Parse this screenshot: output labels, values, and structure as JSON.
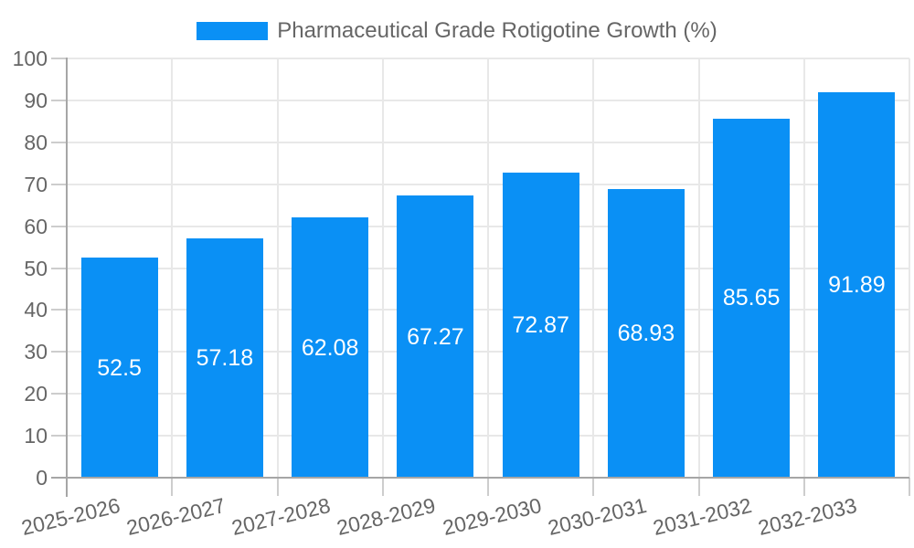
{
  "chart_data": {
    "type": "bar",
    "title": "Pharmaceutical Grade Rotigotine Growth (%)",
    "categories": [
      "2025-2026",
      "2026-2027",
      "2027-2028",
      "2028-2029",
      "2029-2030",
      "2030-2031",
      "2031-2032",
      "2032-2033"
    ],
    "values": [
      52.5,
      57.18,
      62.08,
      67.27,
      72.87,
      68.93,
      85.65,
      91.89
    ],
    "value_labels": [
      "52.5",
      "57.18",
      "62.08",
      "67.27",
      "72.87",
      "68.93",
      "85.65",
      "91.89"
    ],
    "xlabel": "",
    "ylabel": "",
    "ylim": [
      0,
      100
    ],
    "yticks": [
      0,
      10,
      20,
      30,
      40,
      50,
      60,
      70,
      80,
      90,
      100
    ],
    "grid": true,
    "legend_position": "top-center",
    "colors": {
      "bar": "#0a90f5",
      "grid": "#e8e8e8",
      "tick": "#cdcdcd",
      "axis": "#a6a6a6",
      "text": "#666666",
      "value_label": "#ffffff",
      "background": "#ffffff"
    }
  }
}
